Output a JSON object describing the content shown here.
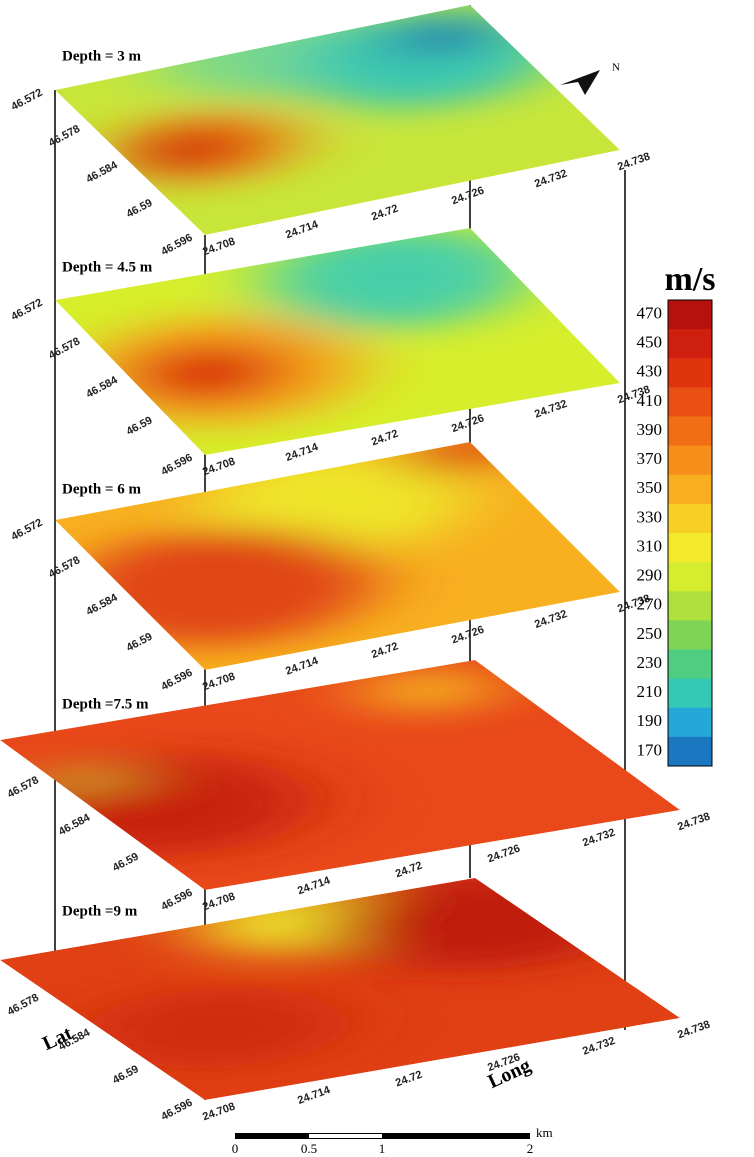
{
  "layers": [
    {
      "label": "Depth = 3 m"
    },
    {
      "label": "Depth = 4.5 m"
    },
    {
      "label": "Depth = 6 m"
    },
    {
      "label": "Depth =7.5 m"
    },
    {
      "label": "Depth =9 m"
    }
  ],
  "lat_ticks": [
    "46.572",
    "46.578",
    "46.584",
    "46.59",
    "46.596"
  ],
  "long_ticks": [
    "24.708",
    "24.714",
    "24.72",
    "24.726",
    "24.732",
    "24.738"
  ],
  "lat_label": "Lat",
  "long_label": "Long",
  "north": "N",
  "colorbar": {
    "unit": "m/s",
    "ticks": [
      "470",
      "450",
      "430",
      "410",
      "390",
      "370",
      "350",
      "330",
      "310",
      "290",
      "270",
      "250",
      "230",
      "210",
      "190",
      "170"
    ],
    "colors": [
      "#b5120e",
      "#cf1f0f",
      "#e0340f",
      "#ea5012",
      "#f26e15",
      "#f58f1a",
      "#f8ae1f",
      "#f8cf24",
      "#f2ea2a",
      "#d6ec2e",
      "#aee03e",
      "#7fd455",
      "#4fcd80",
      "#33c9b5",
      "#24a8d8",
      "#1a78c0"
    ]
  },
  "scale_bar": {
    "ticks": [
      "0",
      "0.5",
      "1",
      "2"
    ],
    "unit": "km"
  }
}
